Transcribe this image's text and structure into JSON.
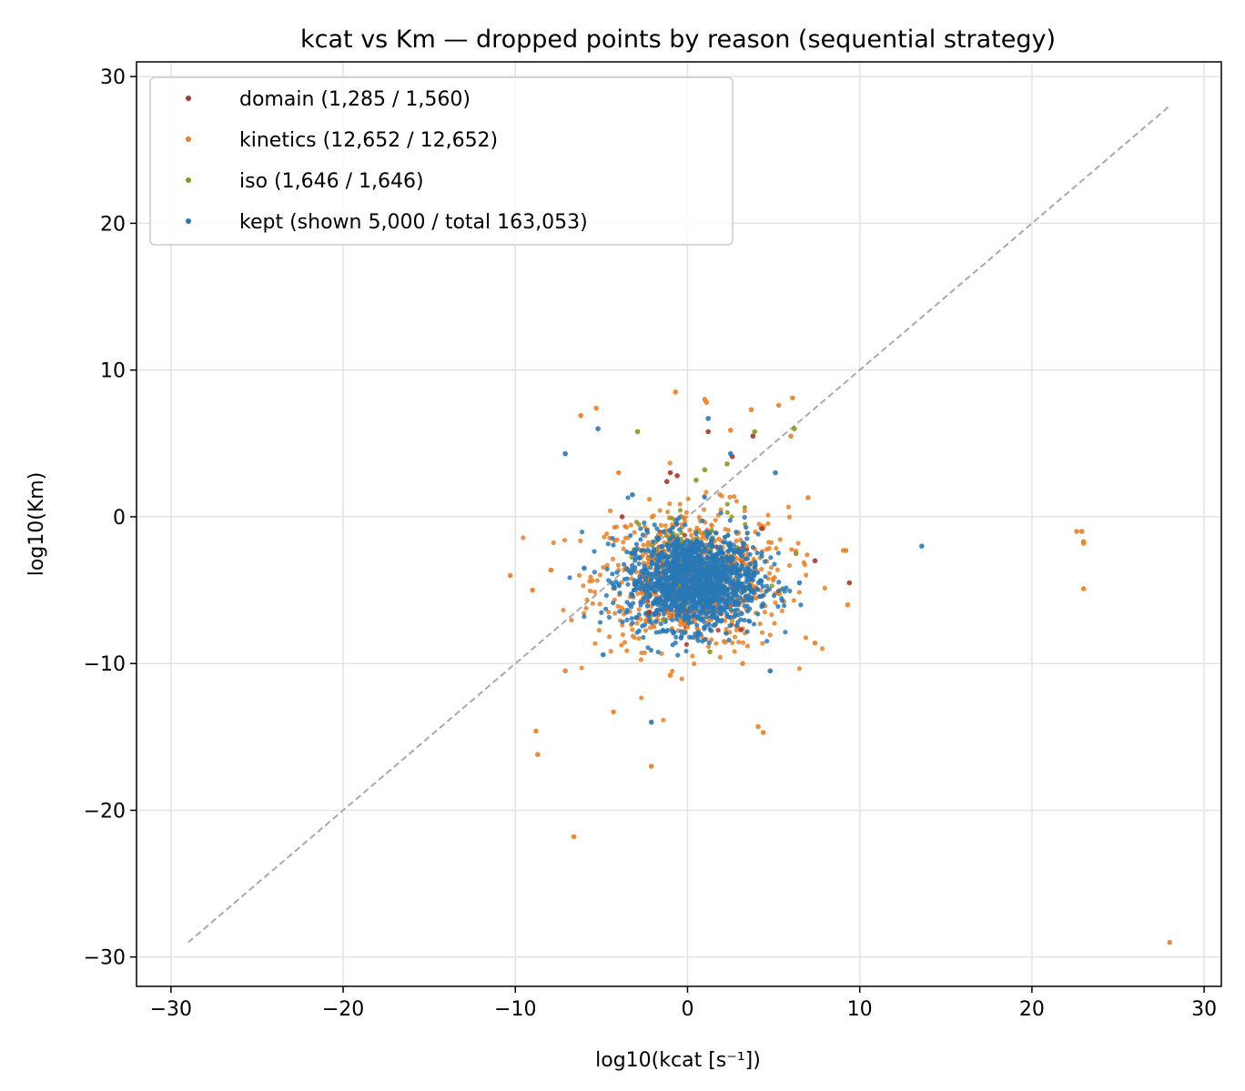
{
  "chart_data": {
    "type": "scatter",
    "title": "kcat vs Km — dropped points by reason (sequential strategy)",
    "xlabel": "log10(kcat [s⁻¹])",
    "ylabel": "log10(Km)",
    "xlim": [
      -32,
      31
    ],
    "ylim": [
      -32,
      31
    ],
    "xticks": [
      -30,
      -20,
      -10,
      0,
      10,
      20,
      30
    ],
    "yticks": [
      -30,
      -20,
      -10,
      0,
      10,
      20,
      30
    ],
    "xtick_labels": [
      "−30",
      "−20",
      "−10",
      "0",
      "10",
      "20",
      "30"
    ],
    "ytick_labels": [
      "−30",
      "−20",
      "−10",
      "0",
      "10",
      "20",
      "30"
    ],
    "grid": true,
    "legend_position": "top-left",
    "reference_line": {
      "style": "dashed",
      "color": "#aaaaaa",
      "from": [
        -29,
        -29
      ],
      "to": [
        28,
        28
      ]
    },
    "series": [
      {
        "name": "domain (1,285 / 1,560)",
        "color": "#a33a2a",
        "cluster": {
          "center": [
            0.5,
            -4.5
          ],
          "spread": [
            1.8,
            1.6
          ],
          "count": 120
        },
        "points": [
          [
            -1,
            3
          ],
          [
            -0.6,
            2.8
          ],
          [
            -1.2,
            2.4
          ],
          [
            3.8,
            5.5
          ],
          [
            9.4,
            -4.5
          ],
          [
            3.1,
            -7.7
          ],
          [
            -3.8,
            0
          ],
          [
            7.4,
            -3
          ],
          [
            1.2,
            5.8
          ],
          [
            2.6,
            4.1
          ],
          [
            -2.2,
            -6.5
          ],
          [
            4.3,
            -0.8
          ]
        ]
      },
      {
        "name": "kinetics (12,652 / 12,652)",
        "color": "#e6812a",
        "cluster": {
          "center": [
            0.2,
            -4.2
          ],
          "spread": [
            2.8,
            2.4
          ],
          "count": 700
        },
        "points": [
          [
            -6.6,
            -21.8
          ],
          [
            -8.8,
            -14.6
          ],
          [
            -8.7,
            -16.2
          ],
          [
            -2.1,
            -17
          ],
          [
            4.1,
            -14.3
          ],
          [
            4.4,
            -14.7
          ],
          [
            -4.3,
            -13.3
          ],
          [
            -10.3,
            -4
          ],
          [
            -7.1,
            -10.5
          ],
          [
            -5.3,
            7.4
          ],
          [
            -6.2,
            6.9
          ],
          [
            -0.7,
            8.5
          ],
          [
            1,
            8
          ],
          [
            1.1,
            7.8
          ],
          [
            3.7,
            7.3
          ],
          [
            5.3,
            7.6
          ],
          [
            6.1,
            8.1
          ],
          [
            6,
            5.5
          ],
          [
            9.2,
            -2.3
          ],
          [
            9.3,
            -6
          ],
          [
            7.4,
            -8.6
          ],
          [
            22.6,
            -1
          ],
          [
            22.9,
            -1
          ],
          [
            23,
            -1.7
          ],
          [
            23,
            -1.8
          ],
          [
            23,
            -4.9
          ],
          [
            28,
            -29
          ],
          [
            -9,
            -5
          ],
          [
            -4,
            3
          ],
          [
            2.5,
            5.9
          ],
          [
            3.2,
            -10
          ],
          [
            -1,
            -10.8
          ],
          [
            7,
            1.3
          ]
        ]
      },
      {
        "name": "iso (1,646 / 1,646)",
        "color": "#8c9423",
        "cluster": {
          "center": [
            0.8,
            -3
          ],
          "spread": [
            1.8,
            1.8
          ],
          "count": 90
        },
        "points": [
          [
            -2.9,
            5.8
          ],
          [
            6.2,
            6
          ],
          [
            3.9,
            5.8
          ],
          [
            1,
            3.2
          ],
          [
            0.5,
            2.5
          ],
          [
            2.3,
            3.6
          ],
          [
            -1.4,
            -7
          ],
          [
            1.3,
            -9.2
          ],
          [
            6.3,
            -2.5
          ]
        ]
      },
      {
        "name": "kept (shown 5,000 / total 163,053)",
        "color": "#2878b5",
        "cluster": {
          "center": [
            0.3,
            -4.4
          ],
          "spread": [
            1.9,
            1.6
          ],
          "count": 1400
        },
        "points": [
          [
            -7.1,
            4.3
          ],
          [
            -5.2,
            6
          ],
          [
            1.2,
            6.7
          ],
          [
            5.1,
            3
          ],
          [
            13.6,
            -2
          ],
          [
            4.8,
            -10.5
          ],
          [
            -2.1,
            -14
          ],
          [
            -4.9,
            -9.4
          ],
          [
            2.5,
            4.3
          ],
          [
            -3.2,
            1.5
          ],
          [
            6.5,
            -4.5
          ],
          [
            -6,
            -3.5
          ]
        ]
      }
    ]
  }
}
